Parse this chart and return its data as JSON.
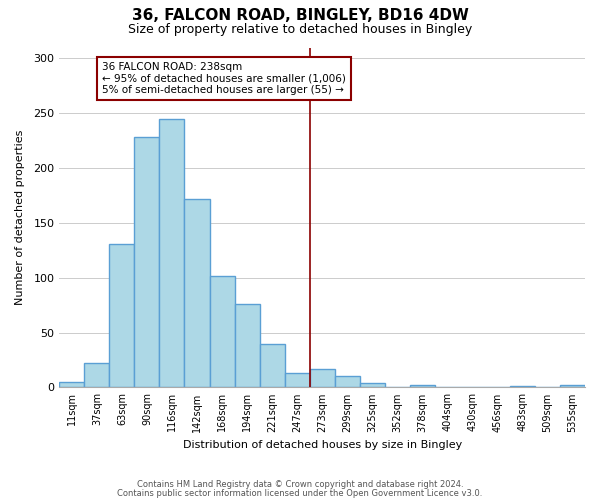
{
  "title": "36, FALCON ROAD, BINGLEY, BD16 4DW",
  "subtitle": "Size of property relative to detached houses in Bingley",
  "xlabel": "Distribution of detached houses by size in Bingley",
  "ylabel": "Number of detached properties",
  "categories": [
    "11sqm",
    "37sqm",
    "63sqm",
    "90sqm",
    "116sqm",
    "142sqm",
    "168sqm",
    "194sqm",
    "221sqm",
    "247sqm",
    "273sqm",
    "299sqm",
    "325sqm",
    "352sqm",
    "378sqm",
    "404sqm",
    "430sqm",
    "456sqm",
    "483sqm",
    "509sqm",
    "535sqm"
  ],
  "bar_heights": [
    5,
    22,
    131,
    228,
    245,
    172,
    102,
    76,
    40,
    13,
    17,
    10,
    4,
    0,
    2,
    0,
    0,
    0,
    1,
    0,
    2
  ],
  "bar_color": "#add8e6",
  "bar_edge_color": "#5a9fd4",
  "bar_linewidth": 1.0,
  "vline_x": 9.5,
  "vline_color": "#8b0000",
  "annotation_title": "36 FALCON ROAD: 238sqm",
  "annotation_line1": "← 95% of detached houses are smaller (1,006)",
  "annotation_line2": "5% of semi-detached houses are larger (55) →",
  "annotation_box_color": "#ffffff",
  "annotation_box_edgecolor": "#8b0000",
  "footer1": "Contains HM Land Registry data © Crown copyright and database right 2024.",
  "footer2": "Contains public sector information licensed under the Open Government Licence v3.0.",
  "ylim": [
    0,
    310
  ],
  "yticks": [
    0,
    50,
    100,
    150,
    200,
    250,
    300
  ],
  "bg_color": "#ffffff",
  "grid_color": "#cccccc"
}
